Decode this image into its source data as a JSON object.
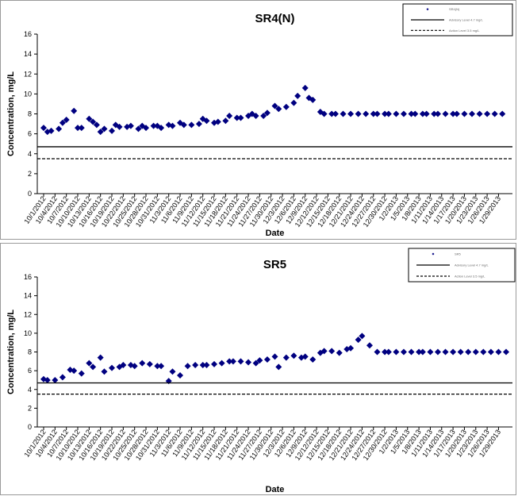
{
  "chart_data": [
    {
      "type": "scatter",
      "title": "SR4(N)",
      "xlabel": "Date",
      "ylabel": "Concentration, mg/L",
      "ylim": [
        0,
        16
      ],
      "yticks": [
        0,
        2,
        4,
        6,
        8,
        10,
        12,
        14,
        16
      ],
      "x_tick_labels": [
        "10/1/2012",
        "10/4/2012",
        "10/7/2012",
        "10/10/2012",
        "10/13/2012",
        "10/16/2012",
        "10/19/2012",
        "10/22/2012",
        "10/25/2012",
        "10/28/2012",
        "10/31/2012",
        "11/3/2012",
        "11/6/2012",
        "11/9/2012",
        "11/12/2012",
        "11/15/2012",
        "11/18/2012",
        "11/21/2012",
        "11/24/2012",
        "11/27/2012",
        "11/30/2012",
        "12/3/2012",
        "12/6/2012",
        "12/9/2012",
        "12/12/2012",
        "12/15/2012",
        "12/18/2012",
        "12/21/2012",
        "12/24/2012",
        "12/27/2012",
        "12/30/2012",
        "1/2/2013",
        "1/5/2013",
        "1/8/2013",
        "1/11/2013",
        "1/14/2013",
        "1/17/2013",
        "1/20/2013",
        "1/23/2013",
        "1/26/2013",
        "1/29/2013"
      ],
      "grid": false,
      "legend_position": "top-right",
      "series": [
        {
          "name": "SR4(N)",
          "kind": "points",
          "marker": "diamond",
          "color": "#000080",
          "x": [
            "10/1/2012",
            "10/2/2012",
            "10/3/2012",
            "10/5/2012",
            "10/6/2012",
            "10/7/2012",
            "10/9/2012",
            "10/10/2012",
            "10/11/2012",
            "10/13/2012",
            "10/14/2012",
            "10/15/2012",
            "10/16/2012",
            "10/17/2012",
            "10/19/2012",
            "10/20/2012",
            "10/21/2012",
            "10/23/2012",
            "10/24/2012",
            "10/26/2012",
            "10/27/2012",
            "10/28/2012",
            "10/30/2012",
            "10/31/2012",
            "11/1/2012",
            "11/3/2012",
            "11/4/2012",
            "11/6/2012",
            "11/7/2012",
            "11/9/2012",
            "11/11/2012",
            "11/12/2012",
            "11/13/2012",
            "11/15/2012",
            "11/16/2012",
            "11/18/2012",
            "11/19/2012",
            "11/21/2012",
            "11/22/2012",
            "11/24/2012",
            "11/25/2012",
            "11/26/2012",
            "11/28/2012",
            "11/29/2012",
            "12/1/2012",
            "12/2/2012",
            "12/4/2012",
            "12/6/2012",
            "12/7/2012",
            "12/9/2012",
            "12/10/2012",
            "12/11/2012",
            "12/13/2012",
            "12/14/2012",
            "12/16/2012",
            "12/17/2012",
            "12/19/2012",
            "12/21/2012",
            "12/23/2012",
            "12/25/2012",
            "12/27/2012",
            "12/28/2012",
            "12/30/2012",
            "12/31/2012",
            "1/2/2013",
            "1/4/2013",
            "1/6/2013",
            "1/7/2013",
            "1/9/2013",
            "1/10/2013",
            "1/12/2013",
            "1/13/2013",
            "1/15/2013",
            "1/17/2013",
            "1/18/2013",
            "1/20/2013",
            "1/22/2013",
            "1/24/2013",
            "1/26/2013",
            "1/28/2013",
            "1/30/2013"
          ],
          "y": [
            6.6,
            6.2,
            6.3,
            6.5,
            7.1,
            7.4,
            8.3,
            6.6,
            6.6,
            7.5,
            7.2,
            6.9,
            6.2,
            6.5,
            6.3,
            6.9,
            6.7,
            6.7,
            6.8,
            6.5,
            6.8,
            6.6,
            6.8,
            6.8,
            6.6,
            6.9,
            6.8,
            7.1,
            6.9,
            6.9,
            7.0,
            7.5,
            7.3,
            7.1,
            7.2,
            7.3,
            7.8,
            7.6,
            7.6,
            7.8,
            8.0,
            7.8,
            7.8,
            8.1,
            8.8,
            8.5,
            8.7,
            9.1,
            9.8,
            10.6,
            9.6,
            9.4,
            8.2,
            8.0,
            8.0,
            8.0,
            8.0,
            8.0,
            8.0,
            8.0,
            8.0,
            8.0,
            8.0,
            8.0,
            8.0,
            8.0,
            8.0,
            8.0,
            8.0,
            8.0,
            8.0,
            8.0,
            8.0,
            8.0,
            8.0,
            8.0,
            8.0,
            8.0,
            8.0,
            8.0,
            8.0
          ]
        },
        {
          "name": "Advisory Level 4.7 mg/L",
          "kind": "hline",
          "y": 4.7,
          "style": "solid",
          "color": "#000000"
        },
        {
          "name": "Action Level 3.5 mg/L",
          "kind": "hline",
          "y": 3.5,
          "style": "dashed",
          "color": "#000000"
        }
      ]
    },
    {
      "type": "scatter",
      "title": "SR5",
      "xlabel": "Date",
      "ylabel": "Concentration, mg/L",
      "ylim": [
        0,
        16
      ],
      "yticks": [
        0,
        2,
        4,
        6,
        8,
        10,
        12,
        14,
        16
      ],
      "x_tick_labels": [
        "10/1/2012",
        "10/4/2012",
        "10/7/2012",
        "10/10/2012",
        "10/13/2012",
        "10/16/2012",
        "10/19/2012",
        "10/22/2012",
        "10/25/2012",
        "10/28/2012",
        "10/31/2012",
        "11/3/2012",
        "11/6/2012",
        "11/9/2012",
        "11/12/2012",
        "11/15/2012",
        "11/18/2012",
        "11/21/2012",
        "11/24/2012",
        "11/27/2012",
        "11/30/2012",
        "12/3/2012",
        "12/6/2012",
        "12/9/2012",
        "12/12/2012",
        "12/15/2012",
        "12/18/2012",
        "12/21/2012",
        "12/24/2012",
        "12/27/2012",
        "12/30/2012",
        "1/2/2013",
        "1/5/2013",
        "1/8/2013",
        "1/11/2013",
        "1/14/2013",
        "1/17/2013",
        "1/20/2013",
        "1/23/2013",
        "1/26/2013",
        "1/29/2013"
      ],
      "grid": false,
      "legend_position": "top-right",
      "series": [
        {
          "name": "SR5",
          "kind": "points",
          "marker": "diamond",
          "color": "#000080",
          "x": [
            "10/1/2012",
            "10/2/2012",
            "10/4/2012",
            "10/6/2012",
            "10/8/2012",
            "10/9/2012",
            "10/11/2012",
            "10/13/2012",
            "10/14/2012",
            "10/16/2012",
            "10/17/2012",
            "10/19/2012",
            "10/21/2012",
            "10/22/2012",
            "10/24/2012",
            "10/25/2012",
            "10/27/2012",
            "10/29/2012",
            "10/31/2012",
            "11/1/2012",
            "11/3/2012",
            "11/4/2012",
            "11/6/2012",
            "11/8/2012",
            "11/10/2012",
            "11/12/2012",
            "11/13/2012",
            "11/15/2012",
            "11/17/2012",
            "11/19/2012",
            "11/20/2012",
            "11/22/2012",
            "11/24/2012",
            "11/26/2012",
            "11/27/2012",
            "11/29/2012",
            "12/1/2012",
            "12/2/2012",
            "12/4/2012",
            "12/6/2012",
            "12/8/2012",
            "12/9/2012",
            "12/11/2012",
            "12/13/2012",
            "12/14/2012",
            "12/16/2012",
            "12/18/2012",
            "12/20/2012",
            "12/21/2012",
            "12/23/2012",
            "12/24/2012",
            "12/26/2012",
            "12/28/2012",
            "12/30/2012",
            "12/31/2012",
            "1/2/2013",
            "1/4/2013",
            "1/6/2013",
            "1/8/2013",
            "1/9/2013",
            "1/11/2013",
            "1/13/2013",
            "1/15/2013",
            "1/17/2013",
            "1/19/2013",
            "1/21/2013",
            "1/23/2013",
            "1/25/2013",
            "1/27/2013",
            "1/29/2013",
            "1/31/2013"
          ],
          "y": [
            5.1,
            5.0,
            5.0,
            5.3,
            6.1,
            6.0,
            5.7,
            6.8,
            6.4,
            7.4,
            5.9,
            6.3,
            6.4,
            6.6,
            6.6,
            6.5,
            6.8,
            6.7,
            6.5,
            6.5,
            4.9,
            5.9,
            5.5,
            6.5,
            6.6,
            6.6,
            6.6,
            6.7,
            6.8,
            7.0,
            7.0,
            7.0,
            6.9,
            6.8,
            7.1,
            7.2,
            7.5,
            6.4,
            7.4,
            7.6,
            7.4,
            7.5,
            7.2,
            7.9,
            8.1,
            8.1,
            7.9,
            8.3,
            8.4,
            9.3,
            9.7,
            8.7,
            8.0,
            8.0,
            8.0,
            8.0,
            8.0,
            8.0,
            8.0,
            8.0,
            8.0,
            8.0,
            8.0,
            8.0,
            8.0,
            8.0,
            8.0,
            8.0,
            8.0,
            8.0,
            8.0
          ]
        },
        {
          "name": "Advisory Level 4.7 mg/L",
          "kind": "hline",
          "y": 4.7,
          "style": "solid",
          "color": "#000000"
        },
        {
          "name": "Action Level 3.5 mg/L",
          "kind": "hline",
          "y": 3.5,
          "style": "dashed",
          "color": "#000000"
        }
      ]
    }
  ]
}
